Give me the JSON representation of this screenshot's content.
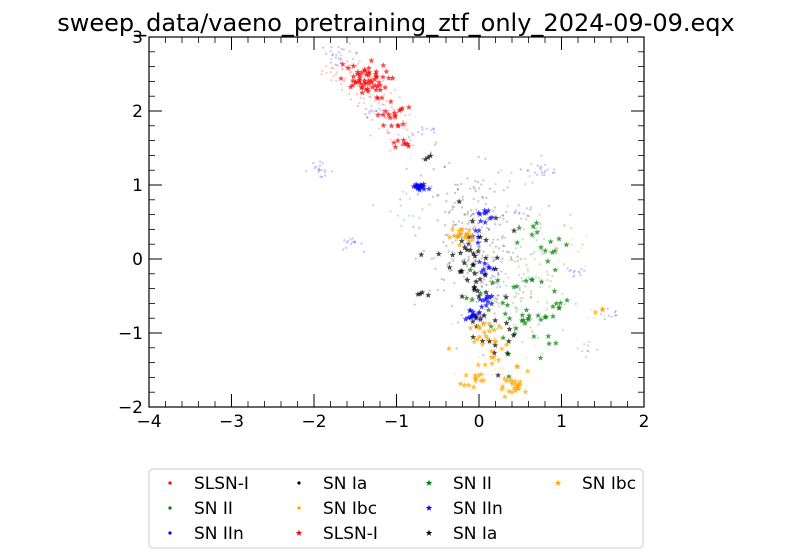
{
  "chart_data": {
    "type": "scatter",
    "title": "sweep_data/vaeno_pretraining_ztf_only_2024-09-09.eqx",
    "xlabel": "",
    "ylabel": "",
    "xlim": [
      -4,
      2
    ],
    "ylim": [
      -2,
      3
    ],
    "x_ticks": [
      -4,
      -3,
      -2,
      -1,
      0,
      1,
      2
    ],
    "y_ticks": [
      -2,
      -1,
      0,
      1,
      2,
      3
    ],
    "x_tick_labels": [
      "−4",
      "−3",
      "−2",
      "−1",
      "0",
      "1",
      "2"
    ],
    "y_tick_labels": [
      "−2",
      "−1",
      "0",
      "1",
      "2",
      "3"
    ],
    "legend_position": "below plot",
    "legend_columns": 4,
    "series": [
      {
        "name": "SLSN-I",
        "marker": "dot",
        "color": "#ff0000",
        "faint": true,
        "clusters": [
          {
            "cx": -1.62,
            "cy": 2.55,
            "sx": 0.14,
            "sy": 0.1,
            "n": 40
          },
          {
            "cx": -1.3,
            "cy": 2.25,
            "sx": 0.16,
            "sy": 0.12,
            "n": 40
          },
          {
            "cx": -1.05,
            "cy": 1.85,
            "sx": 0.14,
            "sy": 0.12,
            "n": 30
          },
          {
            "cx": -0.95,
            "cy": 1.55,
            "sx": 0.08,
            "sy": 0.06,
            "n": 12
          }
        ]
      },
      {
        "name": "SN II",
        "marker": "dot",
        "color": "#008000",
        "faint": true,
        "clusters": [
          {
            "cx": 0.5,
            "cy": -0.45,
            "sx": 0.3,
            "sy": 0.4,
            "n": 90
          },
          {
            "cx": 0.7,
            "cy": 0.25,
            "sx": 0.2,
            "sy": 0.2,
            "n": 30
          },
          {
            "cx": -0.85,
            "cy": 0.7,
            "sx": 0.15,
            "sy": 0.12,
            "n": 14
          },
          {
            "cx": 0.5,
            "cy": 1.05,
            "sx": 0.15,
            "sy": 0.1,
            "n": 10
          },
          {
            "cx": 1.3,
            "cy": -1.2,
            "sx": 0.1,
            "sy": 0.1,
            "n": 8
          }
        ]
      },
      {
        "name": "SN IIn",
        "marker": "dot",
        "color": "#0000ff",
        "faint": true,
        "clusters": [
          {
            "cx": -1.68,
            "cy": 2.78,
            "sx": 0.12,
            "sy": 0.06,
            "n": 22
          },
          {
            "cx": -1.95,
            "cy": 1.2,
            "sx": 0.09,
            "sy": 0.05,
            "n": 18
          },
          {
            "cx": -1.55,
            "cy": 0.2,
            "sx": 0.07,
            "sy": 0.04,
            "n": 14
          },
          {
            "cx": -0.65,
            "cy": 1.72,
            "sx": 0.1,
            "sy": 0.04,
            "n": 12
          },
          {
            "cx": -1.3,
            "cy": 2.0,
            "sx": 0.12,
            "sy": 0.08,
            "n": 16
          },
          {
            "cx": 0.8,
            "cy": 1.2,
            "sx": 0.1,
            "sy": 0.06,
            "n": 18
          },
          {
            "cx": 0.5,
            "cy": 0.62,
            "sx": 0.08,
            "sy": 0.05,
            "n": 12
          },
          {
            "cx": 1.15,
            "cy": -0.2,
            "sx": 0.08,
            "sy": 0.05,
            "n": 12
          },
          {
            "cx": 1.6,
            "cy": -0.75,
            "sx": 0.08,
            "sy": 0.04,
            "n": 10
          },
          {
            "cx": 0.1,
            "cy": -0.1,
            "sx": 0.15,
            "sy": 0.25,
            "n": 20
          }
        ]
      },
      {
        "name": "SN Ia",
        "marker": "dot",
        "color": "#000000",
        "faint": true,
        "clusters": [
          {
            "cx": -0.1,
            "cy": 0.4,
            "sx": 0.3,
            "sy": 0.4,
            "n": 170
          },
          {
            "cx": 0.1,
            "cy": -0.3,
            "sx": 0.25,
            "sy": 0.35,
            "n": 70
          },
          {
            "cx": -0.5,
            "cy": 1.2,
            "sx": 0.2,
            "sy": 0.2,
            "n": 10
          }
        ]
      },
      {
        "name": "SN Ibc",
        "marker": "dot",
        "color": "#ffa500",
        "faint": true,
        "clusters": [
          {
            "cx": 0.9,
            "cy": 0.1,
            "sx": 0.25,
            "sy": 0.2,
            "n": 20
          },
          {
            "cx": 0.2,
            "cy": -1.2,
            "sx": 0.2,
            "sy": 0.3,
            "n": 30
          },
          {
            "cx": 1.4,
            "cy": -0.75,
            "sx": 0.08,
            "sy": 0.05,
            "n": 6
          }
        ]
      },
      {
        "name": "SLSN-I",
        "marker": "star",
        "color": "#ff0000",
        "faint": false,
        "clusters": [
          {
            "cx": -1.4,
            "cy": 2.4,
            "sx": 0.15,
            "sy": 0.12,
            "n": 60
          },
          {
            "cx": -1.05,
            "cy": 1.95,
            "sx": 0.09,
            "sy": 0.1,
            "n": 18
          },
          {
            "cx": -0.95,
            "cy": 1.55,
            "sx": 0.05,
            "sy": 0.04,
            "n": 8
          }
        ]
      },
      {
        "name": "SN II",
        "marker": "star",
        "color": "#008000",
        "faint": false,
        "clusters": [
          {
            "cx": 0.5,
            "cy": -0.7,
            "sx": 0.3,
            "sy": 0.4,
            "n": 45
          },
          {
            "cx": 0.8,
            "cy": 0.2,
            "sx": 0.15,
            "sy": 0.15,
            "n": 12
          },
          {
            "cx": 1.0,
            "cy": -0.65,
            "sx": 0.08,
            "sy": 0.05,
            "n": 6
          }
        ]
      },
      {
        "name": "SN IIn",
        "marker": "star",
        "color": "#0000ff",
        "faint": false,
        "clusters": [
          {
            "cx": -0.72,
            "cy": 0.97,
            "sx": 0.05,
            "sy": 0.025,
            "n": 22
          },
          {
            "cx": -0.05,
            "cy": -0.75,
            "sx": 0.05,
            "sy": 0.05,
            "n": 18
          },
          {
            "cx": 0.05,
            "cy": 0.6,
            "sx": 0.05,
            "sy": 0.04,
            "n": 10
          },
          {
            "cx": 0.1,
            "cy": -0.55,
            "sx": 0.05,
            "sy": 0.05,
            "n": 10
          },
          {
            "cx": 0.1,
            "cy": -0.1,
            "sx": 0.05,
            "sy": 0.05,
            "n": 8
          },
          {
            "cx": -0.05,
            "cy": 0.3,
            "sx": 0.05,
            "sy": 0.05,
            "n": 6
          }
        ]
      },
      {
        "name": "SN Ia",
        "marker": "star",
        "color": "#000000",
        "faint": false,
        "clusters": [
          {
            "cx": -0.1,
            "cy": -0.1,
            "sx": 0.2,
            "sy": 0.4,
            "n": 45
          },
          {
            "cx": 0.3,
            "cy": -1.1,
            "sx": 0.15,
            "sy": 0.15,
            "n": 12
          },
          {
            "cx": -0.7,
            "cy": -0.5,
            "sx": 0.05,
            "sy": 0.03,
            "n": 4
          },
          {
            "cx": -0.65,
            "cy": 1.4,
            "sx": 0.05,
            "sy": 0.05,
            "n": 3
          }
        ]
      },
      {
        "name": "SN Ibc",
        "marker": "star",
        "color": "#ffa500",
        "faint": false,
        "clusters": [
          {
            "cx": -0.2,
            "cy": 0.32,
            "sx": 0.07,
            "sy": 0.05,
            "n": 22
          },
          {
            "cx": 0.45,
            "cy": -1.72,
            "sx": 0.1,
            "sy": 0.05,
            "n": 20
          },
          {
            "cx": 0.2,
            "cy": -1.25,
            "sx": 0.15,
            "sy": 0.25,
            "n": 25
          },
          {
            "cx": -0.05,
            "cy": -1.62,
            "sx": 0.06,
            "sy": 0.05,
            "n": 12
          },
          {
            "cx": 0.05,
            "cy": -0.95,
            "sx": 0.12,
            "sy": 0.08,
            "n": 10
          },
          {
            "cx": 1.45,
            "cy": -0.72,
            "sx": 0.04,
            "sy": 0.03,
            "n": 3
          }
        ]
      }
    ]
  }
}
